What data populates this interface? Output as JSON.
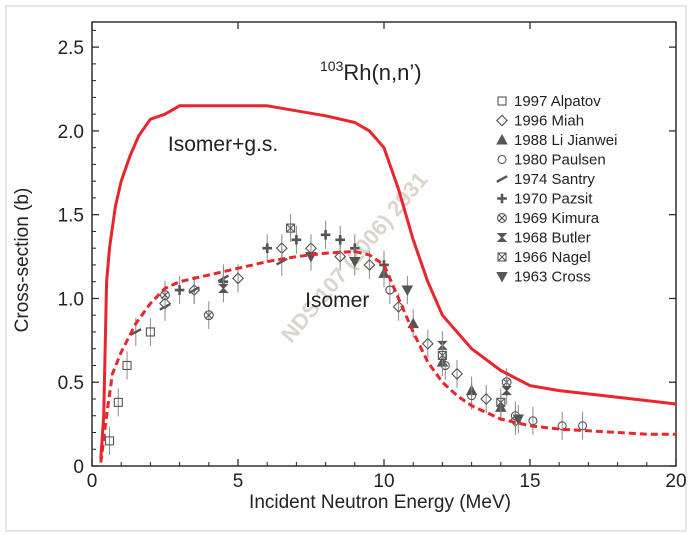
{
  "chart_data": {
    "type": "scatter",
    "title_prefix": "103",
    "title_main": "Rh(n,n’)",
    "xlabel": "Incident Neutron Energy (MeV)",
    "ylabel": "Cross-section (b)",
    "xlim": [
      0,
      20
    ],
    "ylim": [
      0,
      2.65
    ],
    "x_ticks": [
      "0",
      "5",
      "10",
      "15",
      "20"
    ],
    "y_ticks": [
      "0",
      "0.5",
      "1.0",
      "1.5",
      "2.0",
      "2.5"
    ],
    "grid": false,
    "legend_position": "right",
    "watermark": "NDS 107 (2006) 2931",
    "colors": {
      "curve": "#e8262c",
      "data": "#555555",
      "axis": "#222222"
    },
    "curves": [
      {
        "name": "Isomer+g.s.",
        "style": "solid",
        "x": [
          0.3,
          0.4,
          0.5,
          0.6,
          0.8,
          1.0,
          1.3,
          1.6,
          2.0,
          2.5,
          3.0,
          4.0,
          5.0,
          6.0,
          7.0,
          8.0,
          9.0,
          9.5,
          10.0,
          10.5,
          11.0,
          11.5,
          12.0,
          13.0,
          14.0,
          15.0,
          16.0,
          18.0,
          20.0
        ],
        "y": [
          0.04,
          0.3,
          1.1,
          1.3,
          1.55,
          1.7,
          1.85,
          1.97,
          2.07,
          2.1,
          2.15,
          2.15,
          2.15,
          2.15,
          2.12,
          2.09,
          2.05,
          2.0,
          1.9,
          1.65,
          1.35,
          1.1,
          0.9,
          0.7,
          0.57,
          0.48,
          0.45,
          0.41,
          0.37
        ]
      },
      {
        "name": "Isomer",
        "style": "dashed",
        "x": [
          0.3,
          0.5,
          0.7,
          1.0,
          1.5,
          2.0,
          2.5,
          3.0,
          4.0,
          5.0,
          6.0,
          7.0,
          8.0,
          9.0,
          9.5,
          10.0,
          10.5,
          11.0,
          11.5,
          12.0,
          12.5,
          13.0,
          14.0,
          15.0,
          16.0,
          17.0,
          18.0,
          19.0,
          20.0
        ],
        "y": [
          0.02,
          0.3,
          0.55,
          0.68,
          0.85,
          0.97,
          1.06,
          1.1,
          1.14,
          1.18,
          1.22,
          1.25,
          1.27,
          1.28,
          1.26,
          1.2,
          1.0,
          0.8,
          0.62,
          0.5,
          0.42,
          0.36,
          0.28,
          0.24,
          0.22,
          0.21,
          0.2,
          0.19,
          0.19
        ]
      }
    ],
    "series": [
      {
        "name": "1997 Alpatov",
        "marker": "square",
        "x": [
          0.6,
          0.9,
          1.2,
          2.0
        ],
        "y": [
          0.15,
          0.38,
          0.6,
          0.8
        ]
      },
      {
        "name": "1996 Miah",
        "marker": "diamond",
        "x": [
          2.5,
          3.5,
          5.0,
          6.5,
          7.5,
          8.5,
          9.5,
          10.5,
          11.5,
          12.5,
          13.5,
          14.5
        ],
        "y": [
          0.97,
          1.05,
          1.12,
          1.3,
          1.3,
          1.25,
          1.2,
          0.95,
          0.73,
          0.55,
          0.4,
          0.27
        ]
      },
      {
        "name": "1988 Li Jianwei",
        "marker": "triangle-up",
        "x": [
          10.0,
          11.0,
          12.0,
          13.0,
          14.0
        ],
        "y": [
          1.15,
          0.85,
          0.62,
          0.45,
          0.35
        ]
      },
      {
        "name": "1980 Paulsen",
        "marker": "circle",
        "x": [
          10.2,
          12.1,
          13.0,
          14.5,
          15.1,
          16.1,
          16.8
        ],
        "y": [
          1.05,
          0.6,
          0.42,
          0.3,
          0.27,
          0.24,
          0.24
        ]
      },
      {
        "name": "1974 Santry",
        "marker": "slash",
        "x": [
          1.5,
          2.5,
          3.5,
          4.5,
          6.5
        ],
        "y": [
          0.8,
          0.95,
          1.05,
          1.12,
          1.22
        ]
      },
      {
        "name": "1970 Pazsit",
        "marker": "plus",
        "x": [
          3.0,
          4.5,
          6.0,
          7.0,
          8.0,
          8.5,
          9.0,
          10.0
        ],
        "y": [
          1.05,
          1.1,
          1.3,
          1.35,
          1.38,
          1.35,
          1.3,
          1.2
        ]
      },
      {
        "name": "1969 Kimura",
        "marker": "circle-x",
        "x": [
          2.5,
          4.0,
          14.2
        ],
        "y": [
          1.02,
          0.9,
          0.5
        ]
      },
      {
        "name": "1968 Butler",
        "marker": "hourglass",
        "x": [
          4.5,
          12.0,
          14.2
        ],
        "y": [
          1.06,
          0.72,
          0.45
        ]
      },
      {
        "name": "1966 Nagel",
        "marker": "bowtie",
        "x": [
          6.8,
          12.0,
          14.0
        ],
        "y": [
          1.42,
          0.66,
          0.38
        ]
      },
      {
        "name": "1963 Cross",
        "marker": "triangle-down",
        "x": [
          7.5,
          9.0,
          10.8,
          14.6
        ],
        "y": [
          1.25,
          1.22,
          1.05,
          0.28
        ]
      }
    ],
    "annotations": [
      {
        "text": "Isomer+g.s.",
        "x": 2.6,
        "y": 1.88
      },
      {
        "text": "Isomer",
        "x": 7.3,
        "y": 0.95
      }
    ]
  }
}
